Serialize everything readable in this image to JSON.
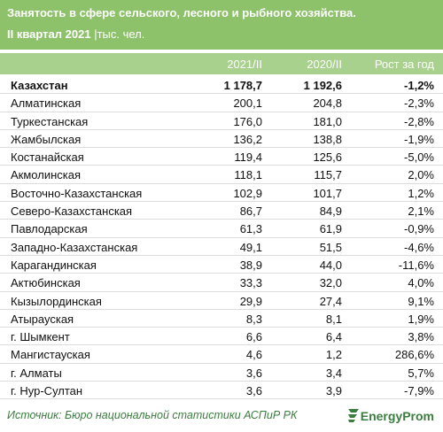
{
  "header": {
    "title": "Занятость в сфере сельского, лесного и рыбного хозяйства.",
    "period": "II квартал 2021",
    "unit": "|тыс. чел."
  },
  "table": {
    "columns": [
      "",
      "2021/II",
      "2020/II",
      "Рост за год"
    ],
    "rows": [
      [
        "Казахстан",
        "1 178,7",
        "1 192,6",
        "-1,2%"
      ],
      [
        "Алматинская",
        "200,1",
        "204,8",
        "-2,3%"
      ],
      [
        "Туркестанская",
        "176,0",
        "181,0",
        "-2,8%"
      ],
      [
        "Жамбылская",
        "136,2",
        "138,8",
        "-1,9%"
      ],
      [
        "Костанайская",
        "119,4",
        "125,6",
        "-5,0%"
      ],
      [
        "Акмолинская",
        "118,1",
        "115,7",
        "2,0%"
      ],
      [
        "Восточно-Казахстанская",
        "102,9",
        "101,7",
        "1,2%"
      ],
      [
        "Северо-Казахстанская",
        "86,7",
        "84,9",
        "2,1%"
      ],
      [
        "Павлодарская",
        "61,3",
        "61,9",
        "-0,9%"
      ],
      [
        "Западно-Казахстанская",
        "49,1",
        "51,5",
        "-4,6%"
      ],
      [
        "Карагандинская",
        "38,9",
        "44,0",
        "-11,6%"
      ],
      [
        "Актюбинская",
        "33,3",
        "32,0",
        "4,0%"
      ],
      [
        "Кызылординская",
        "29,9",
        "27,4",
        "9,1%"
      ],
      [
        "Атырауская",
        "8,3",
        "8,1",
        "1,9%"
      ],
      [
        "г. Шымкент",
        "6,6",
        "6,4",
        "3,8%"
      ],
      [
        "Мангистауская",
        "4,6",
        "1,2",
        "286,6%"
      ],
      [
        "г. Алматы",
        "3,6",
        "3,4",
        "5,7%"
      ],
      [
        "г. Нур-Султан",
        "3,6",
        "3,9",
        "-7,9%"
      ]
    ]
  },
  "footer": {
    "source": "Источник: Бюро национальной статистики АСПиР РК",
    "logo": "EnergyProm"
  }
}
